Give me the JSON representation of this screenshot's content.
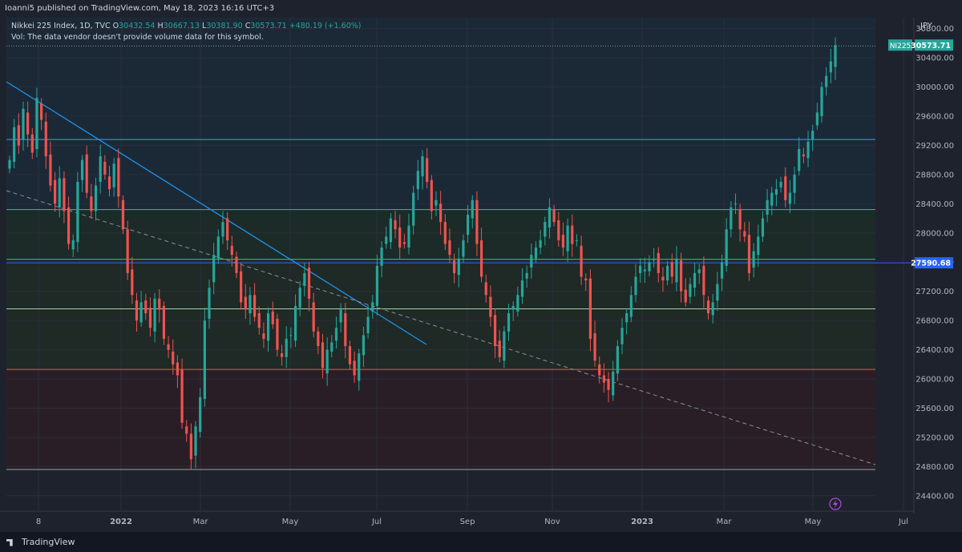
{
  "header": {
    "published": "Ioanni5 published on TradingView.com, May 18, 2023 16:16 UTC+3",
    "symbol_line": "Nikkei 225 Index, 1D, TVC",
    "o_label": "O",
    "o_val": "30432.54",
    "h_label": "H",
    "h_val": "30667.13",
    "l_label": "L",
    "l_val": "30381.90",
    "c_label": "C",
    "c_val": "30573.71",
    "change": "+480.19 (+1.60%)",
    "vol_note": "Vol: The data vendor doesn't provide volume data for this symbol.",
    "currency": "JPY"
  },
  "footer": {
    "brand": "TradingView"
  },
  "price_tags": [
    {
      "symbol": "NI225",
      "value": "30573.71",
      "price": 30573.71,
      "color": "#26a69a"
    },
    {
      "value": "27590.68",
      "price": 27590.68,
      "color": "#2962ff"
    }
  ],
  "colors": {
    "up": "#26a69a",
    "down": "#ef5350",
    "trend": "#2196f3",
    "zone_top": "#1b2a3a",
    "zone_mid": "#1c2b28",
    "zone_low": "#2b1e26"
  },
  "chart_data": {
    "type": "candlestick",
    "ylim": [
      24200,
      30950
    ],
    "y_ticks": [
      24400,
      24800,
      25200,
      25600,
      26000,
      26400,
      26800,
      27200,
      27600,
      28000,
      28400,
      28800,
      29200,
      29600,
      30000,
      30400,
      30800
    ],
    "x_ticks": [
      "8",
      "2022",
      "Mar",
      "May",
      "Jul",
      "Sep",
      "Nov",
      "2023",
      "Mar",
      "May",
      "Jul"
    ],
    "horizontal_levels": [
      {
        "price": 29280,
        "color": "#4c9be8"
      },
      {
        "price": 28320,
        "color": "#4fae9d"
      },
      {
        "price": 27640,
        "color": "#4fae9d"
      },
      {
        "price": 27590.68,
        "color": "#2962ff"
      },
      {
        "price": 26960,
        "color": "#a5d6a7"
      },
      {
        "price": 26130,
        "color": "#ef5350"
      },
      {
        "price": 24760,
        "color": "#9aa0a6"
      },
      {
        "price": 30560,
        "color": "#8a8f9a"
      }
    ],
    "series": [
      {
        "name": "Nikkei 225 Index",
        "close": [
          29000,
          29450,
          29200,
          29700,
          29350,
          29100,
          29850,
          29550,
          29050,
          28650,
          28400,
          28750,
          28300,
          27850,
          27900,
          28700,
          29000,
          28550,
          28300,
          28650,
          29050,
          28800,
          28600,
          28950,
          28500,
          28050,
          27450,
          27150,
          26800,
          27050,
          26900,
          26700,
          27100,
          26950,
          26550,
          26400,
          26200,
          26050,
          25400,
          25250,
          24900,
          25350,
          25750,
          26800,
          27250,
          27700,
          27950,
          28150,
          27900,
          27700,
          27450,
          27050,
          26950,
          27150,
          26850,
          26700,
          26550,
          26900,
          26750,
          26400,
          26300,
          26550,
          26600,
          27000,
          27250,
          27450,
          27100,
          26650,
          26450,
          26150,
          26400,
          26500,
          26700,
          26950,
          26450,
          26200,
          26050,
          26350,
          26600,
          26850,
          27050,
          27550,
          27800,
          27950,
          28200,
          28050,
          27800,
          27850,
          28100,
          28550,
          28850,
          29050,
          28700,
          28300,
          28450,
          28150,
          27850,
          27700,
          27450,
          27650,
          27900,
          28250,
          28450,
          27850,
          27400,
          27150,
          26850,
          26450,
          26300,
          26650,
          26900,
          27000,
          27150,
          27350,
          27450,
          27700,
          27800,
          27900,
          28150,
          28350,
          28150,
          27900,
          27800,
          28100,
          27850,
          27900,
          27400,
          27350,
          26550,
          26250,
          26050,
          25950,
          25850,
          26100,
          26450,
          26700,
          26900,
          27150,
          27400,
          27550,
          27500,
          27600,
          27650,
          27450,
          27350,
          27550,
          27400,
          27650,
          27200,
          27050,
          27300,
          27450,
          27500,
          27150,
          26900,
          27050,
          27300,
          27600,
          28050,
          28350,
          28400,
          28050,
          27950,
          27450,
          27750,
          27950,
          28200,
          28450,
          28550,
          28600,
          28700,
          28450,
          28550,
          28800,
          29150,
          29050,
          29250,
          29400,
          29650,
          30000,
          30150,
          30350,
          30573.71
        ]
      }
    ],
    "trendlines": [
      {
        "from": {
          "date": "Dec 2021",
          "price": 29500
        },
        "to": {
          "date": "Jul 2022",
          "price": 26950
        },
        "style": "solid"
      },
      {
        "from": {
          "date": "Dec 2021",
          "price": 28800
        },
        "to": {
          "date": "Jun 2023",
          "price": 24790
        },
        "style": "dashed"
      }
    ]
  }
}
